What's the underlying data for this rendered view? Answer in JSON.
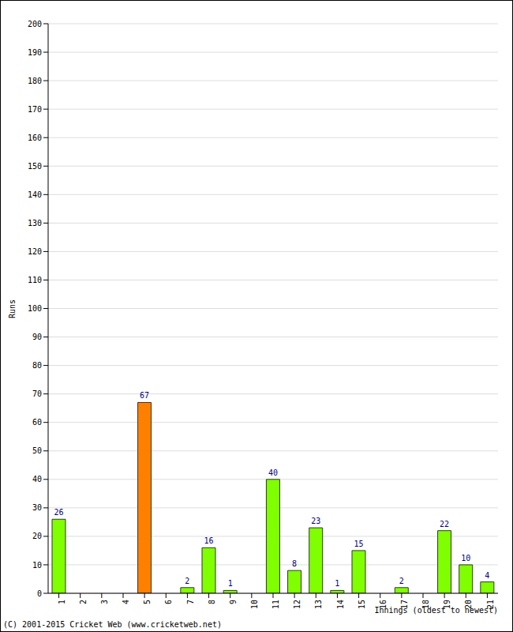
{
  "chart_data": {
    "type": "bar",
    "x_label": "Innings (oldest to newest)",
    "y_label": "Runs",
    "annotations": [
      "(C) 2001-2015 Cricket Web (www.cricketweb.net)"
    ],
    "categories": [
      "1",
      "2",
      "3",
      "4",
      "5",
      "6",
      "7",
      "8",
      "9",
      "10",
      "11",
      "12",
      "13",
      "14",
      "15",
      "16",
      "17",
      "18",
      "19",
      "20",
      "21"
    ],
    "values": [
      26,
      0,
      0,
      0,
      67,
      0,
      2,
      16,
      1,
      0,
      40,
      8,
      23,
      1,
      15,
      0,
      2,
      0,
      22,
      10,
      4
    ],
    "colors": [
      "#80ff00",
      "#80ff00",
      "#80ff00",
      "#80ff00",
      "#ff8000",
      "#80ff00",
      "#80ff00",
      "#80ff00",
      "#80ff00",
      "#80ff00",
      "#80ff00",
      "#80ff00",
      "#80ff00",
      "#80ff00",
      "#80ff00",
      "#80ff00",
      "#80ff00",
      "#80ff00",
      "#80ff00",
      "#80ff00",
      "#80ff00"
    ],
    "ylim": [
      0,
      200
    ],
    "yticks": [
      0,
      10,
      20,
      30,
      40,
      50,
      60,
      70,
      80,
      90,
      100,
      110,
      120,
      130,
      140,
      150,
      160,
      170,
      180,
      190,
      200
    ],
    "grid": true,
    "data_labels": true
  }
}
